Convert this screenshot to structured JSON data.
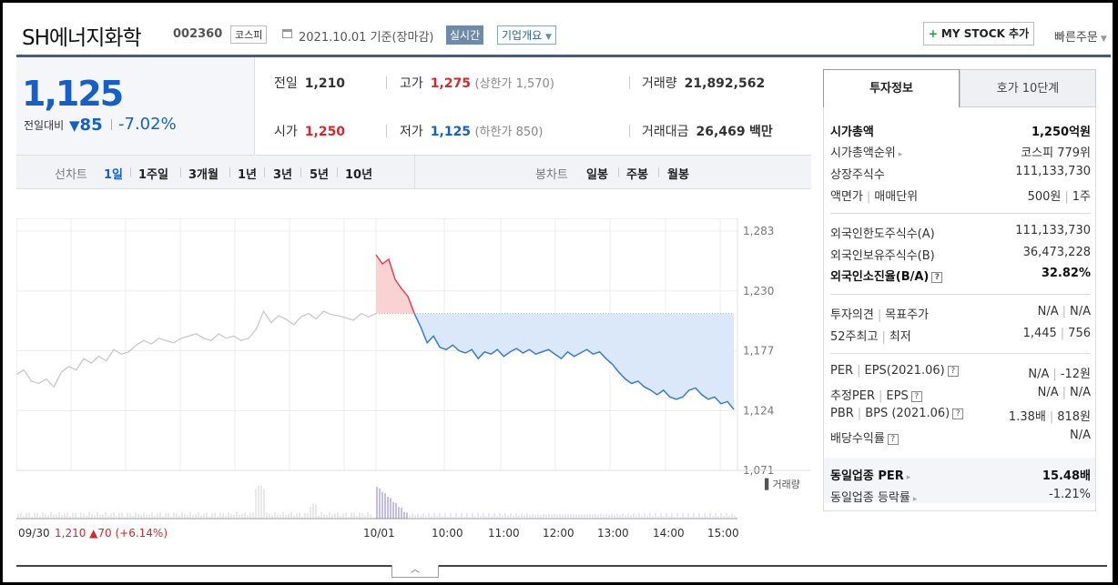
{
  "header": {
    "name": "SH에너지화학",
    "code": "002360",
    "market": "코스피",
    "date": "2021.10.01 기준(장마감)",
    "realtime": "실시간",
    "overview": "기업개요",
    "my_stock": "MY STOCK 추가",
    "quick_order": "빠른주문"
  },
  "price": {
    "current": "1,125",
    "prev_label": "전일대비",
    "change": "85",
    "change_rate": "-7.02%"
  },
  "quote": {
    "prev_label": "전일",
    "prev": "1,210",
    "high_label": "고가",
    "high": "1,275",
    "upper_limit": "(상한가 1,570)",
    "volume_label": "거래량",
    "volume": "21,892,562",
    "open_label": "시가",
    "open": "1,250",
    "low_label": "저가",
    "low": "1,125",
    "lower_limit": "(하한가 850)",
    "amount_label": "거래대금",
    "amount": "26,469",
    "amount_unit": "백만"
  },
  "periods": {
    "line_label": "선차트",
    "line_items": [
      "1일",
      "1주일",
      "3개월",
      "1년",
      "3년",
      "5년",
      "10년"
    ],
    "selected": "1일",
    "candle_label": "봉차트",
    "candle_items": [
      "일봉",
      "주봉",
      "월봉"
    ]
  },
  "chart_data": {
    "type": "line",
    "y_ticks": [
      "1,283",
      "1,230",
      "1,177",
      "1,124",
      "1,071"
    ],
    "ylim": [
      1071,
      1283
    ],
    "x_ticks": [
      "10/01",
      "10:00",
      "11:00",
      "12:00",
      "13:00",
      "14:00",
      "15:00"
    ],
    "prev_close": 1210,
    "volume_label": "거래량",
    "prev_day": {
      "date": "09/30",
      "close": "1,210",
      "change": "70",
      "rate": "(+6.14%)"
    },
    "series": [
      {
        "values": [
          1156,
          1160,
          1150,
          1148,
          1152,
          1145,
          1158,
          1163,
          1160,
          1170,
          1166,
          1172,
          1168,
          1178,
          1174,
          1176,
          1182,
          1186,
          1183,
          1188,
          1186,
          1184,
          1188,
          1190,
          1192,
          1188,
          1186,
          1192,
          1188,
          1190,
          1186,
          1188,
          1196,
          1212,
          1202,
          1208,
          1205,
          1200,
          1207,
          1210,
          1205,
          1212,
          1209,
          1208,
          1206,
          1204,
          1210,
          1207,
          1210
        ]
      },
      {
        "values": [
          1262,
          1254,
          1258,
          1240,
          1232,
          1225,
          1210,
          1198,
          1184,
          1190,
          1180,
          1178,
          1182,
          1177,
          1175,
          1178,
          1170,
          1176,
          1174,
          1178,
          1172,
          1176,
          1179,
          1175,
          1178,
          1174,
          1176,
          1178,
          1174,
          1170,
          1176,
          1172,
          1175,
          1178,
          1174,
          1176,
          1170,
          1165,
          1158,
          1152,
          1148,
          1150,
          1145,
          1142,
          1138,
          1142,
          1136,
          1134,
          1136,
          1142,
          1144,
          1138,
          1134,
          1136,
          1130,
          1132,
          1125
        ]
      }
    ]
  },
  "invest": {
    "tab_info": "투자정보",
    "tab_orderbook": "호가 10단계",
    "mkt_cap_label": "시가총액",
    "mkt_cap": "1,250억원",
    "mkt_rank_label": "시가총액순위",
    "mkt_rank": "코스피 779위",
    "shares_label": "상장주식수",
    "shares": "111,133,730",
    "par_label": "액면가",
    "unit_label": "매매단위",
    "par": "500원",
    "unit": "1주",
    "foreign_limit_label": "외국인한도주식수(A)",
    "foreign_limit": "111,133,730",
    "foreign_hold_label": "외국인보유주식수(B)",
    "foreign_hold": "36,473,228",
    "foreign_ratio_label": "외국인소진율(B/A)",
    "foreign_ratio": "32.82%",
    "opinion_label": "투자의견",
    "target_label": "목표주가",
    "opinion": "N/A",
    "target": "N/A",
    "high52_label": "52주최고",
    "low52_label": "최저",
    "high52": "1,445",
    "low52": "756",
    "per_label": "PER",
    "eps_label": "EPS(2021.06)",
    "per": "N/A",
    "eps": "-12원",
    "est_per_label": "추정PER",
    "est_eps_label": "EPS",
    "est_per": "N/A",
    "est_eps": "N/A",
    "pbr_label": "PBR",
    "bps_label": "BPS (2021.06)",
    "pbr": "1.38배",
    "bps": "818원",
    "div_label": "배당수익률",
    "div": "N/A",
    "ind_per_label": "동일업종 PER",
    "ind_per": "15.48배",
    "ind_rate_label": "동일업종 등락률",
    "ind_rate": "-1.21%"
  }
}
